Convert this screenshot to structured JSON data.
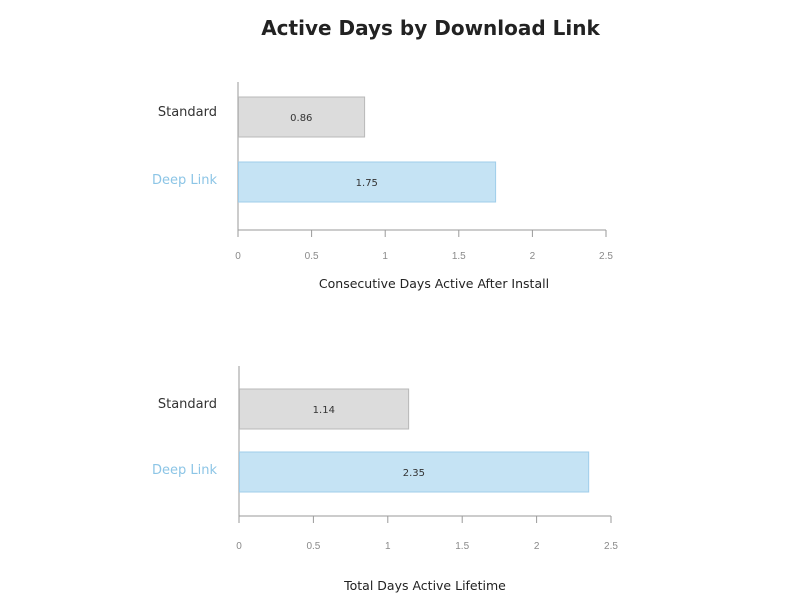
{
  "title": "Active Days by Download Link",
  "colors": {
    "standard_fill": "#dcdcdc",
    "standard_stroke": "#b8b8b8",
    "deeplink_fill": "#c5e3f4",
    "deeplink_stroke": "#9fcdea",
    "standard_label": "#333333",
    "deeplink_label": "#8cc5e6"
  },
  "chart_data": [
    {
      "type": "bar",
      "orientation": "horizontal",
      "categories": [
        "Standard",
        "Deep Link"
      ],
      "values": [
        0.86,
        1.75
      ],
      "value_labels": [
        "0.86",
        "1.75"
      ],
      "xlabel": "Consecutive Days Active After Install",
      "xlim": [
        0,
        2.5
      ],
      "xticks": [
        "0",
        "0.5",
        "1",
        "1.5",
        "2",
        "2.5"
      ],
      "grid": false
    },
    {
      "type": "bar",
      "orientation": "horizontal",
      "categories": [
        "Standard",
        "Deep Link"
      ],
      "values": [
        1.14,
        2.35
      ],
      "value_labels": [
        "1.14",
        "2.35"
      ],
      "xlabel": "Total Days Active Lifetime",
      "xlim": [
        0,
        2.5
      ],
      "xticks": [
        "0",
        "0.5",
        "1",
        "1.5",
        "2",
        "2.5"
      ],
      "grid": false
    }
  ]
}
